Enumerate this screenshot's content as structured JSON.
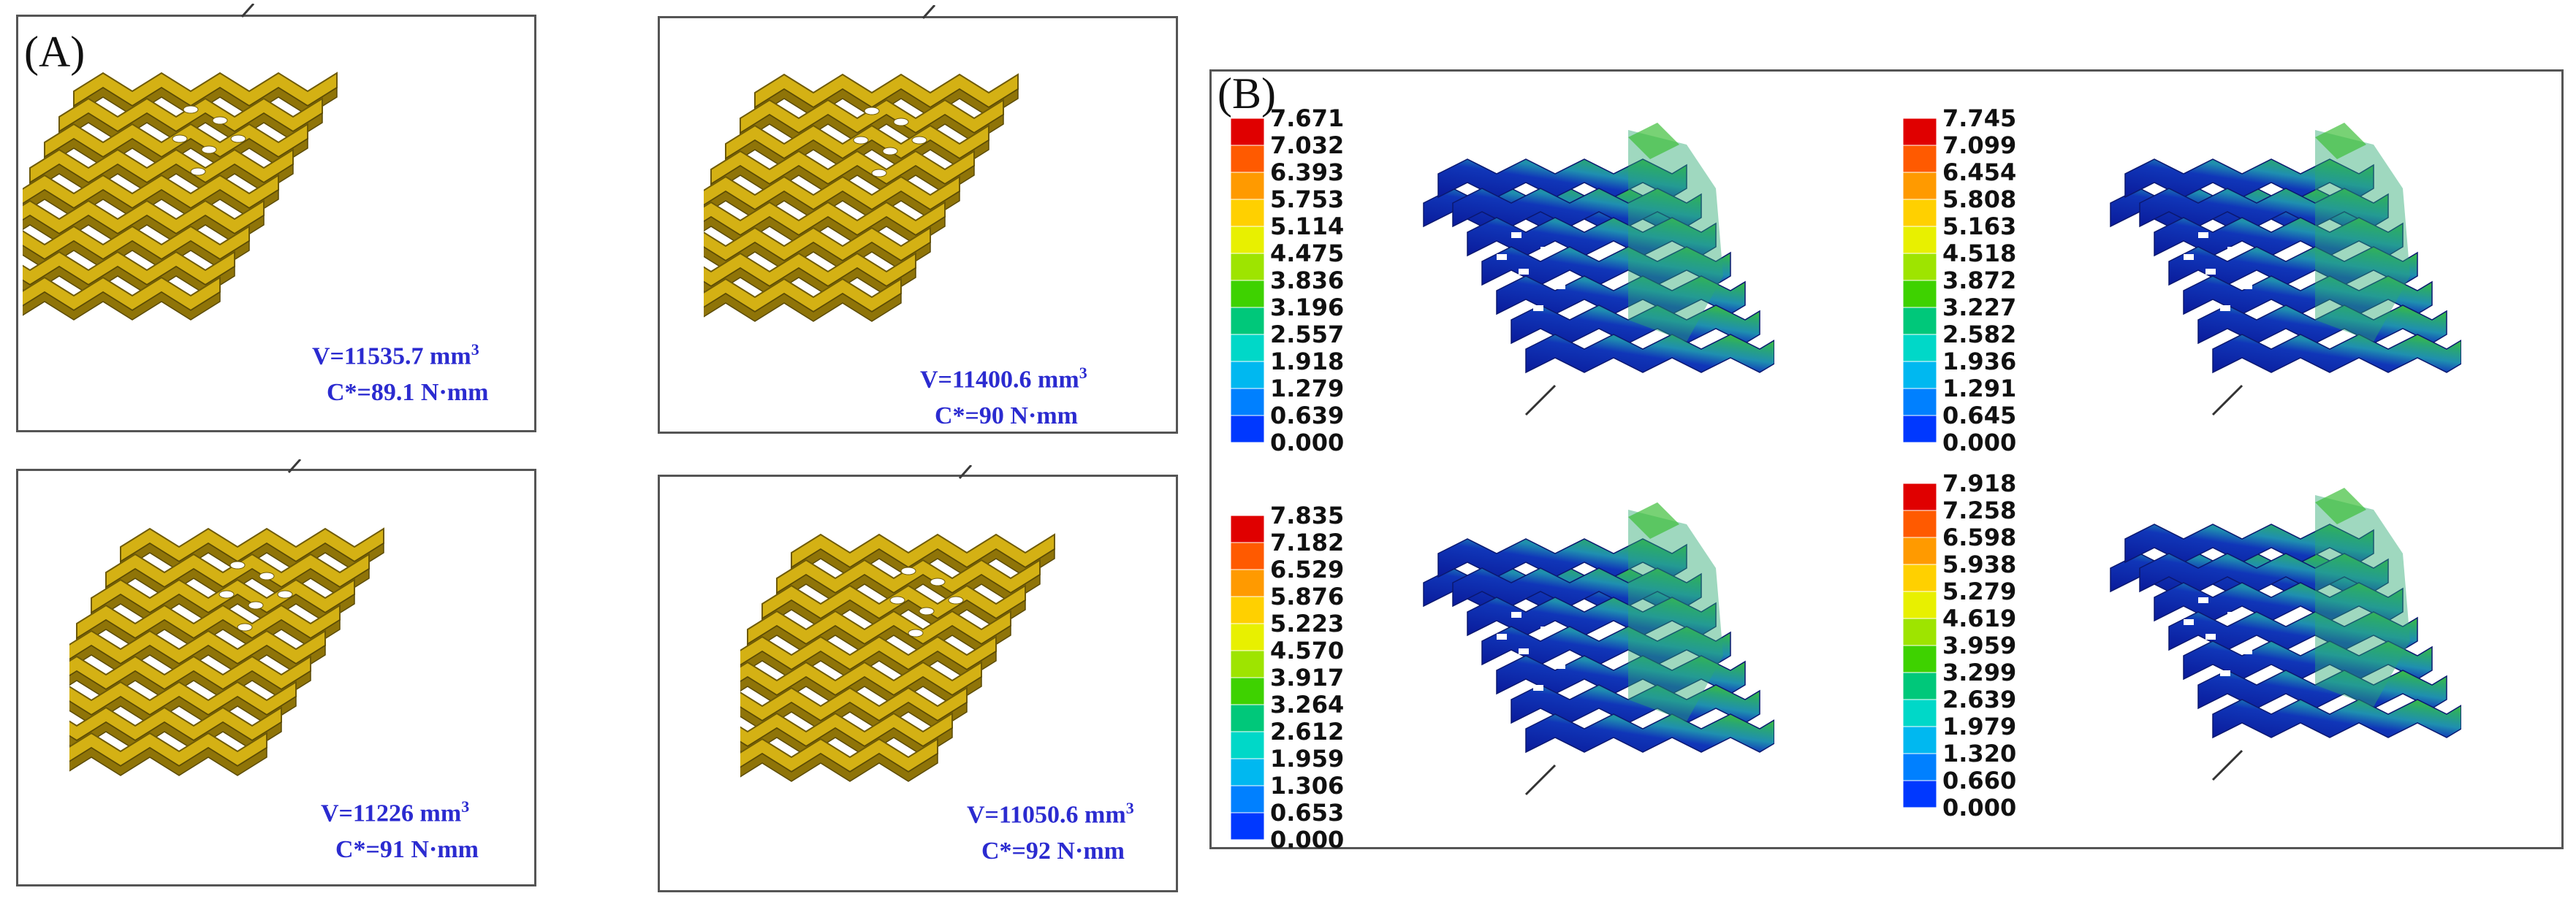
{
  "figure": {
    "label_a": "(A)",
    "label_b": "(B)"
  },
  "panel_a": {
    "designs": [
      {
        "volume_prefix": "V=11535.7 mm",
        "volume_exp": "3",
        "compliance": "C*=89.1 N·mm"
      },
      {
        "volume_prefix": "V=11400.6 mm",
        "volume_exp": "3",
        "compliance": "C*=90 N·mm"
      },
      {
        "volume_prefix": "V=11226 mm",
        "volume_exp": "3",
        "compliance": "C*=91 N·mm"
      },
      {
        "volume_prefix": "V=11050.6 mm",
        "volume_exp": "3",
        "compliance": "C*=92 N·mm"
      }
    ]
  },
  "panel_b": {
    "legends": [
      {
        "ticks": [
          "7.671",
          "7.032",
          "6.393",
          "5.753",
          "5.114",
          "4.475",
          "3.836",
          "3.196",
          "2.557",
          "1.918",
          "1.279",
          "0.639",
          "0.000"
        ]
      },
      {
        "ticks": [
          "7.745",
          "7.099",
          "6.454",
          "5.808",
          "5.163",
          "4.518",
          "3.872",
          "3.227",
          "2.582",
          "1.936",
          "1.291",
          "0.645",
          "0.000"
        ]
      },
      {
        "ticks": [
          "7.835",
          "7.182",
          "6.529",
          "5.876",
          "5.223",
          "4.570",
          "3.917",
          "3.264",
          "2.612",
          "1.959",
          "1.306",
          "0.653",
          "0.000"
        ]
      },
      {
        "ticks": [
          "7.918",
          "7.258",
          "6.598",
          "5.938",
          "5.279",
          "4.619",
          "3.959",
          "3.299",
          "2.639",
          "1.979",
          "1.320",
          "0.660",
          "0.000"
        ]
      }
    ],
    "colormap": [
      "#e00000",
      "#ff5a00",
      "#ff9a00",
      "#ffd000",
      "#e8f000",
      "#9ee400",
      "#3ed200",
      "#00c87a",
      "#00d8c8",
      "#00b8f0",
      "#0080ff",
      "#0038ff"
    ]
  }
}
